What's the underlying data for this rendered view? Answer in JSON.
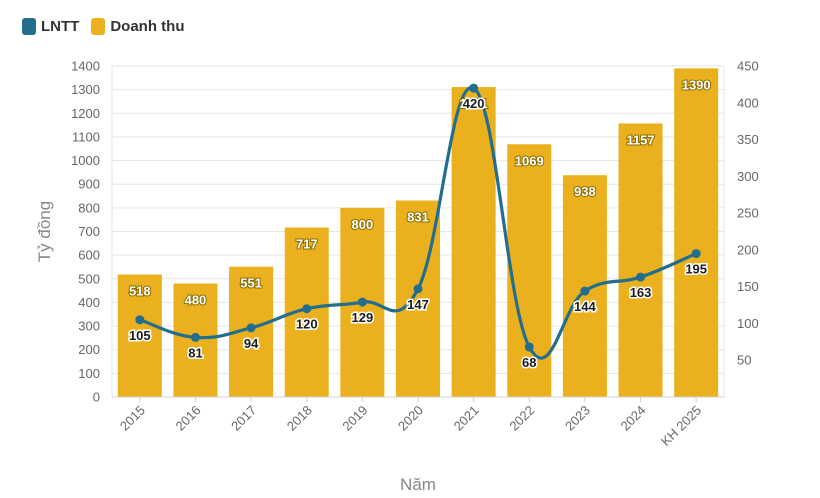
{
  "legend": [
    {
      "label": "LNTT",
      "color": "#236e8c"
    },
    {
      "label": "Doanh thu",
      "color": "#ebb01e"
    }
  ],
  "chart_data": {
    "type": "bar",
    "categories": [
      "2015",
      "2016",
      "2017",
      "2018",
      "2019",
      "2020",
      "2021",
      "2022",
      "2023",
      "2024",
      "KH 2025"
    ],
    "series": [
      {
        "name": "Doanh thu",
        "type": "bar",
        "axis": "left",
        "color": "#ebb01e",
        "values": [
          518,
          480,
          551,
          717,
          800,
          831,
          1311,
          1069,
          938,
          1157,
          1390
        ]
      },
      {
        "name": "LNTT",
        "type": "line",
        "axis": "right",
        "color": "#236e8c",
        "values": [
          105,
          81,
          94,
          120,
          129,
          147,
          420,
          68,
          144,
          163,
          195
        ]
      }
    ],
    "xlabel": "Năm",
    "ylabel": "Tỷ đồng",
    "ylim": [
      0,
      1400
    ],
    "y_ticks": [
      0,
      100,
      200,
      300,
      400,
      500,
      600,
      700,
      800,
      900,
      1000,
      1100,
      1200,
      1300,
      1400
    ],
    "y2lim": [
      0,
      450
    ],
    "y2_ticks": [
      50,
      100,
      150,
      200,
      250,
      300,
      350,
      400,
      450
    ],
    "grid": true,
    "legend_position": "top-left"
  }
}
